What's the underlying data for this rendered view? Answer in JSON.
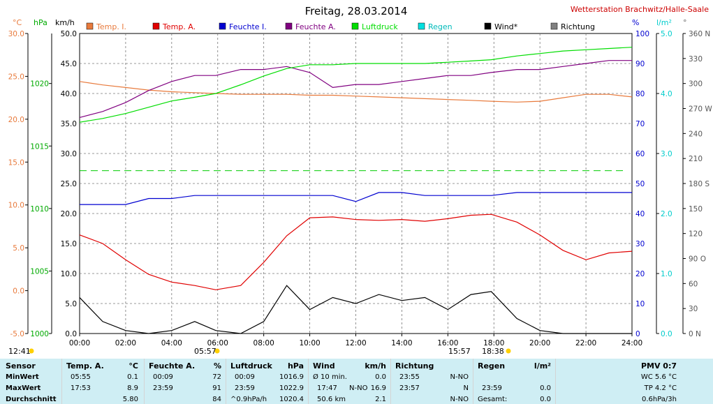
{
  "header": {
    "title": "Freitag, 28.03.2014",
    "station": "Wetterstation Brachwitz/Halle-Saale",
    "time_left": "12:41",
    "sunrise": "05:57",
    "sunset": "18:38",
    "noon": "15:57"
  },
  "axes": {
    "temp_unit": "°C",
    "press_unit": "hPa",
    "wind_unit": "km/h",
    "hum_unit": "%",
    "rain_unit": "l/m²",
    "dir_unit": "°",
    "temp_ticks": [
      "30.0",
      "25.0",
      "20.0",
      "15.0",
      "10.0",
      "5.0",
      "0.0",
      "-5.0"
    ],
    "press_ticks": [
      "1020",
      "1015",
      "1010",
      "1005",
      "1000"
    ],
    "wind_ticks": [
      "50.0",
      "45.0",
      "40.0",
      "35.0",
      "30.0",
      "25.0",
      "20.0",
      "15.0",
      "10.0",
      "5.0",
      "0.0"
    ],
    "hum_ticks": [
      "100",
      "90",
      "80",
      "70",
      "60",
      "50",
      "40",
      "30",
      "20",
      "10",
      "0"
    ],
    "rain_ticks": [
      "5.0",
      "4.0",
      "3.0",
      "2.0",
      "1.0",
      "0.0"
    ],
    "dir_ticks": [
      "360 N",
      "330",
      "300",
      "270 W",
      "240",
      "210",
      "180 S",
      "150",
      "120",
      "90 O",
      "60",
      "30",
      "0 N"
    ],
    "time_ticks": [
      "00:00",
      "02:00",
      "04:00",
      "06:00",
      "08:00",
      "10:00",
      "12:00",
      "14:00",
      "16:00",
      "18:00",
      "20:00",
      "22:00",
      "24:00"
    ]
  },
  "legend": [
    {
      "label": "Temp. I.",
      "color": "#e87a3c"
    },
    {
      "label": "Temp. A.",
      "color": "#e00000"
    },
    {
      "label": "Feuchte I.",
      "color": "#0000d0"
    },
    {
      "label": "Feuchte A.",
      "color": "#800080"
    },
    {
      "label": "Luftdruck",
      "color": "#00dd00"
    },
    {
      "label": "Regen",
      "color": "#00e0e0"
    },
    {
      "label": "Wind*",
      "color": "#000000"
    },
    {
      "label": "Richtung",
      "color": "#808080"
    }
  ],
  "chart_data": {
    "type": "line",
    "x_label": "",
    "x": [
      "00:00",
      "01:00",
      "02:00",
      "03:00",
      "04:00",
      "05:00",
      "05:55",
      "07:00",
      "08:00",
      "09:00",
      "10:00",
      "11:00",
      "12:00",
      "13:00",
      "14:00",
      "15:00",
      "16:00",
      "17:00",
      "17:53",
      "19:00",
      "20:00",
      "21:00",
      "22:00",
      "23:00",
      "24:00"
    ],
    "series": [
      {
        "name": "Temp. I.",
        "axis": "temp",
        "values": [
          24.4,
          24.0,
          23.7,
          23.4,
          23.2,
          23.1,
          23.0,
          22.9,
          22.9,
          22.9,
          22.8,
          22.8,
          22.7,
          22.6,
          22.5,
          22.4,
          22.3,
          22.2,
          22.1,
          22.0,
          22.1,
          22.5,
          22.9,
          22.9,
          22.6
        ]
      },
      {
        "name": "Temp. A.",
        "axis": "temp",
        "values": [
          6.5,
          5.5,
          3.6,
          1.9,
          1.0,
          0.6,
          0.1,
          0.6,
          3.3,
          6.4,
          8.5,
          8.6,
          8.3,
          8.2,
          8.3,
          8.1,
          8.4,
          8.8,
          8.9,
          8.0,
          6.5,
          4.7,
          3.6,
          4.4,
          4.6
        ]
      },
      {
        "name": "Feuchte I.",
        "axis": "hum",
        "values": [
          43,
          43,
          43,
          45,
          45,
          46,
          46,
          46,
          46,
          46,
          46,
          46,
          44,
          47,
          47,
          46,
          46,
          46,
          46,
          47,
          47,
          47,
          47,
          47,
          47
        ]
      },
      {
        "name": "Feuchte A.",
        "axis": "hum",
        "values": [
          72,
          74,
          77,
          81,
          84,
          86,
          86,
          88,
          88,
          89,
          87,
          82,
          83,
          83,
          84,
          85,
          86,
          86,
          87,
          88,
          88,
          89,
          90,
          91,
          91
        ]
      },
      {
        "name": "Luftdruck",
        "axis": "press",
        "values": [
          1016.9,
          1017.2,
          1017.6,
          1018.1,
          1018.6,
          1018.9,
          1019.2,
          1019.9,
          1020.6,
          1021.2,
          1021.5,
          1021.5,
          1021.6,
          1021.6,
          1021.6,
          1021.6,
          1021.7,
          1021.8,
          1021.9,
          1022.2,
          1022.4,
          1022.6,
          1022.7,
          1022.8,
          1022.9
        ]
      },
      {
        "name": "Wind*",
        "axis": "wind",
        "values": [
          6.0,
          2.0,
          0.5,
          0.0,
          0.5,
          2.0,
          0.5,
          0.0,
          2.0,
          8.0,
          4.0,
          6.0,
          5.0,
          6.5,
          5.5,
          6.0,
          4.0,
          6.5,
          7.0,
          2.5,
          0.5,
          0.0,
          0.0,
          0.0,
          0.0
        ]
      }
    ],
    "pmv_line": {
      "axis": "temp",
      "value": 14.0
    }
  },
  "footer": {
    "sensor": {
      "title": "Sensor",
      "rows": [
        "MinWert",
        "MaxWert",
        "Durchschnitt"
      ]
    },
    "temp": {
      "title": "Temp. A.",
      "unit": "°C",
      "min_time": "05:55",
      "min_val": "0.1",
      "max_time": "17:53",
      "max_val": "8.9",
      "avg_val": "5.80"
    },
    "hum": {
      "title": "Feuchte A.",
      "unit": "%",
      "min_time": "00:09",
      "min_val": "72",
      "max_time": "23:59",
      "max_val": "91",
      "avg_val": "84"
    },
    "press": {
      "title": "Luftdruck",
      "unit": "hPa",
      "min_time": "00:09",
      "min_val": "1016.9",
      "max_time": "23:59",
      "max_val": "1022.9",
      "trend": "^0.9hPa/h",
      "avg_val": "1020.4"
    },
    "wind": {
      "title": "Wind",
      "unit": "km/h",
      "row1_label": "Ø 10 min.",
      "row1_val": "0.0",
      "max_time": "17:47",
      "max_dir": "N-NO",
      "max_val": "16.9",
      "dist": "50.6 km",
      "avg_val": "2.1"
    },
    "dir": {
      "title": "Richtung",
      "row1_time": "23:55",
      "row1_val": "N-NO",
      "row2_time": "23:57",
      "row2_val": "N",
      "row3_val": "N-NO"
    },
    "rain": {
      "title": "Regen",
      "unit": "l/m²",
      "row2_time": "23:59",
      "row2_val": "0.0",
      "row3_label": "Gesamt:",
      "row3_val": "0.0"
    },
    "pmv": {
      "title": "PMV 0:7",
      "wc": "WC 5.6 °C",
      "tp": "TP 4.2 °C",
      "rate": "0.6hPa/3h"
    }
  }
}
